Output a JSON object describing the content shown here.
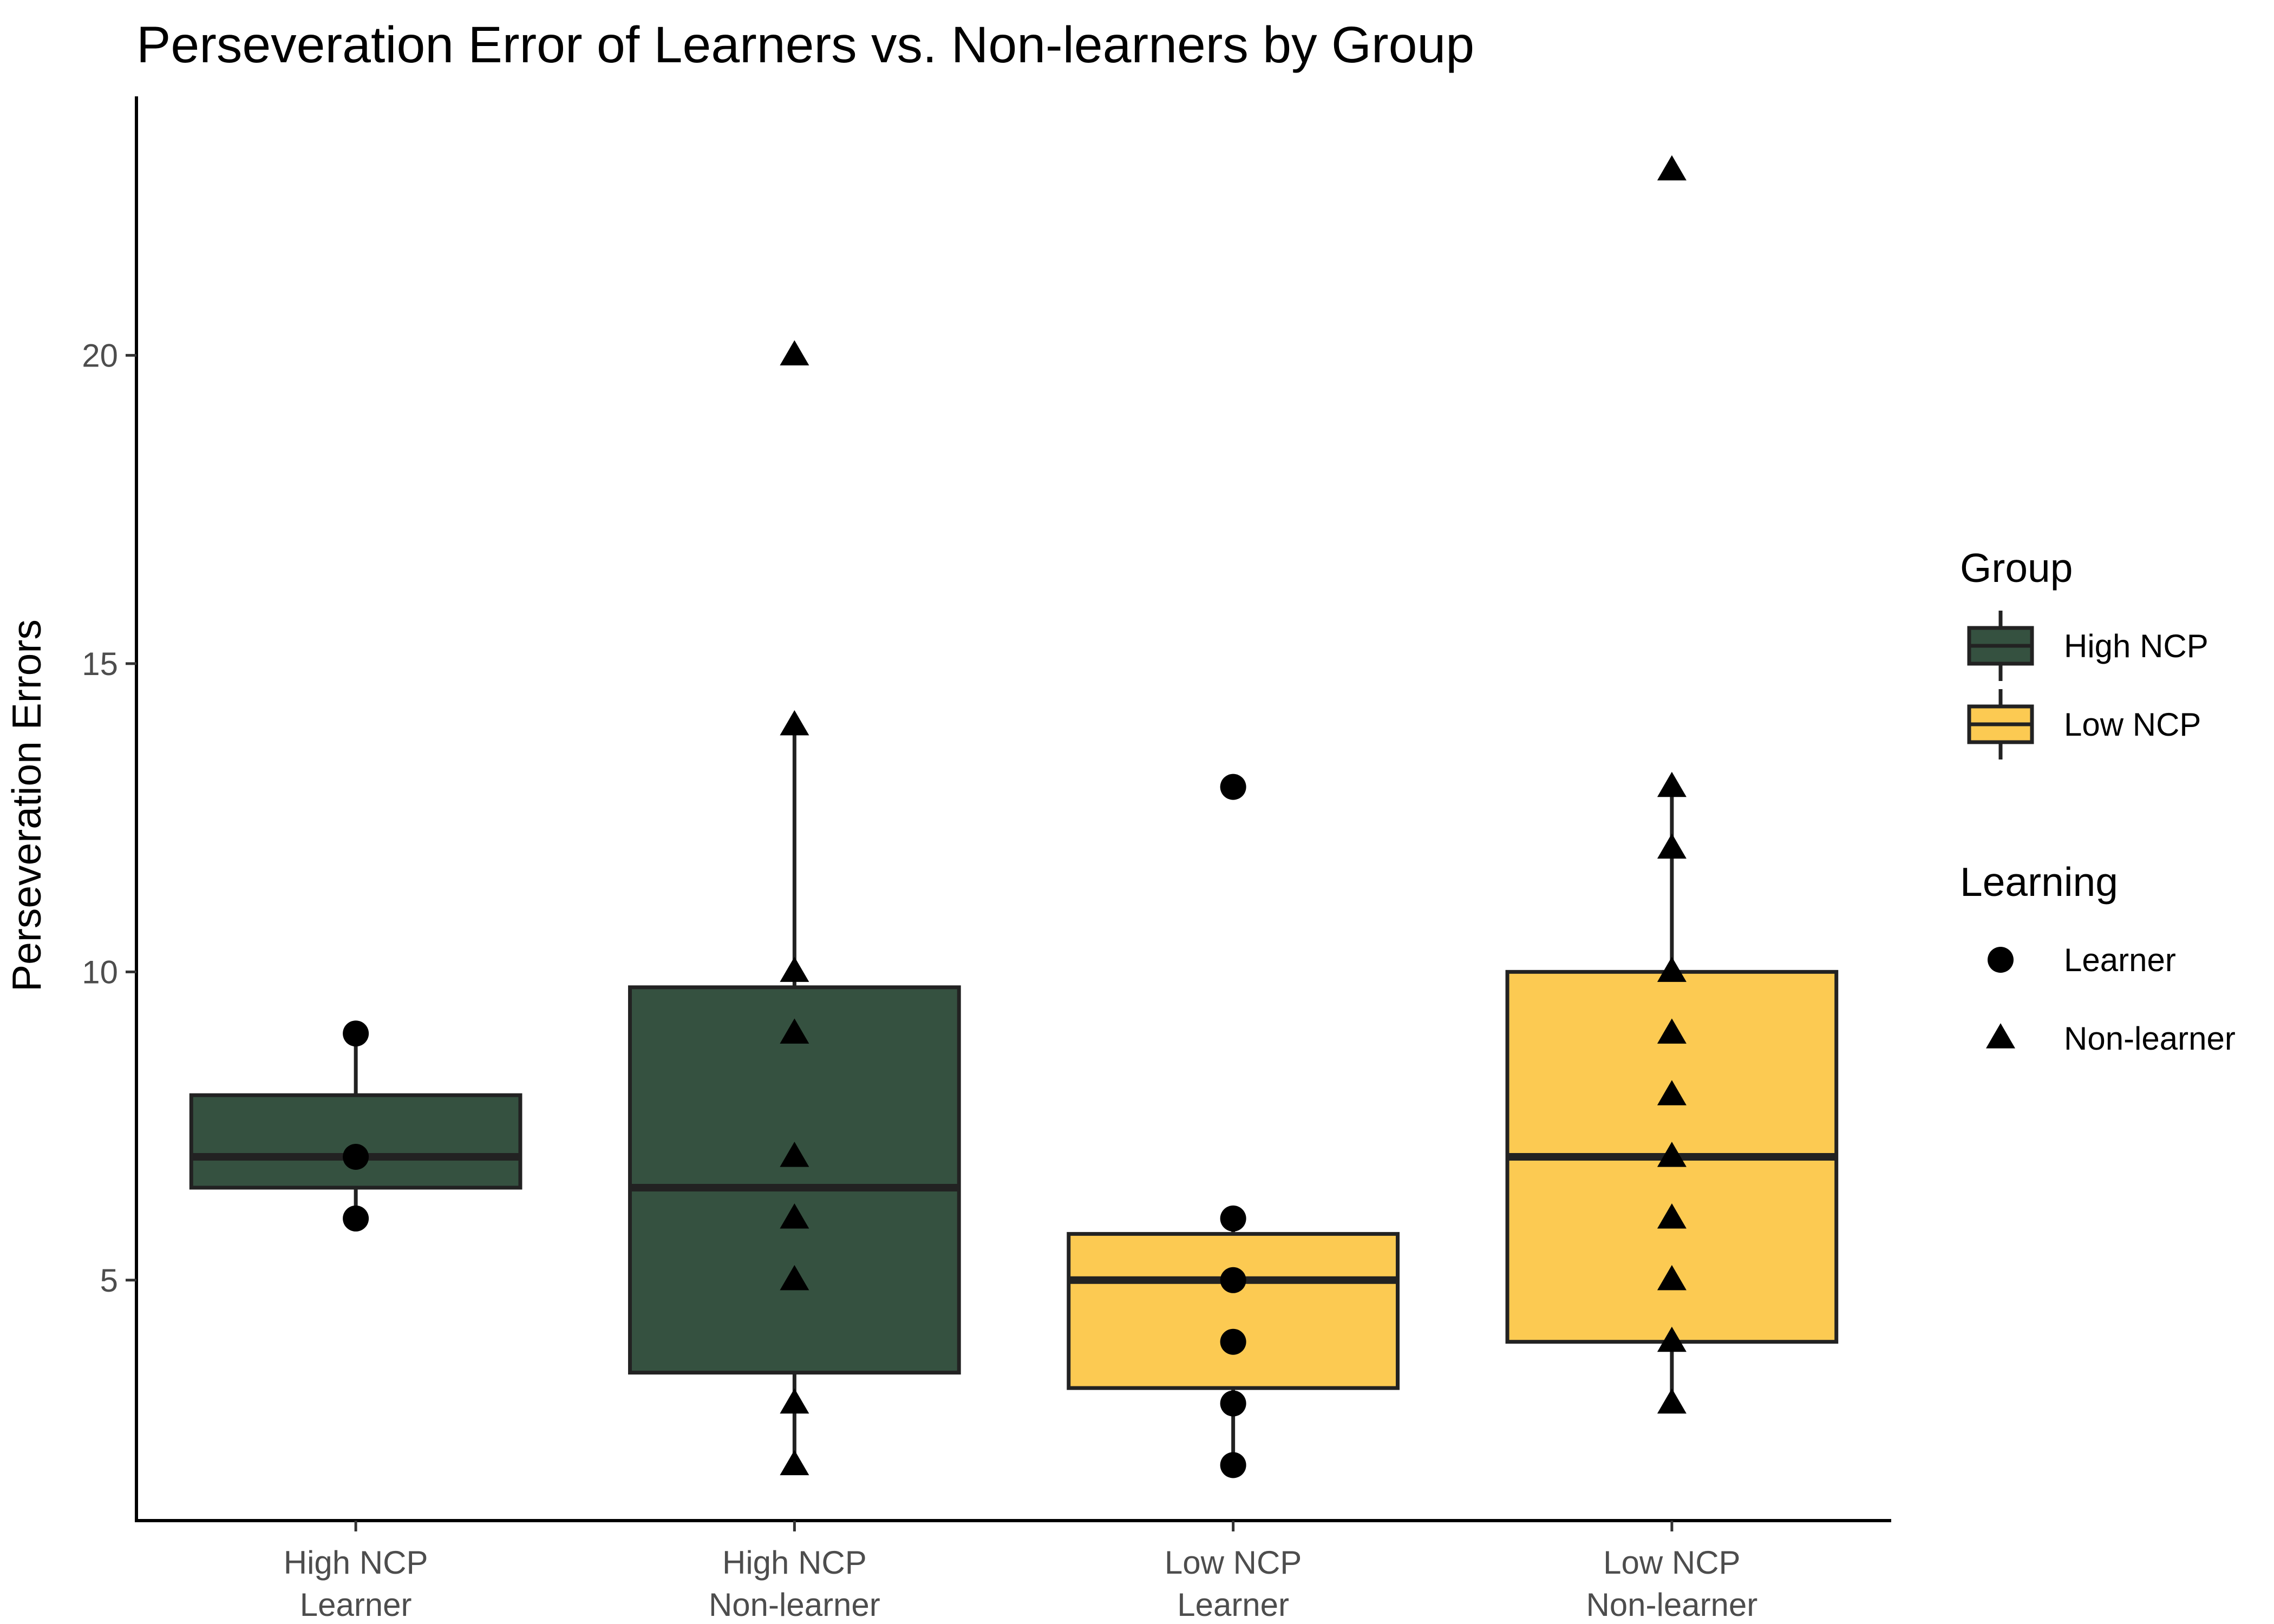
{
  "chart_data": {
    "type": "boxplot",
    "title": "Perseveration Error of Learners vs. Non-learners by Group",
    "xlabel": "",
    "ylabel": "Perseveration Errors",
    "ylim": [
      1.1,
      24.2
    ],
    "yticks": [
      5,
      10,
      15,
      20
    ],
    "grid": false,
    "legend_position": "right",
    "colors": {
      "High NCP": "#355140",
      "Low NCP": "#FCCA52",
      "outline": "#222222"
    },
    "categories": [
      {
        "label_line1": "High NCP",
        "label_line2": "Learner",
        "group": "High NCP",
        "learning": "Learner",
        "box": {
          "lower_whisker": 6,
          "q1": 6.5,
          "median": 7,
          "q3": 8,
          "upper_whisker": 9
        },
        "points": [
          9,
          7,
          6
        ]
      },
      {
        "label_line1": "High NCP",
        "label_line2": "Non-learner",
        "group": "High NCP",
        "learning": "Non-learner",
        "box": {
          "lower_whisker": 2,
          "q1": 3.5,
          "median": 6.5,
          "q3": 9.75,
          "upper_whisker": 14
        },
        "points": [
          20,
          14,
          10,
          9,
          7,
          6,
          5,
          3,
          2
        ]
      },
      {
        "label_line1": "Low NCP",
        "label_line2": "Learner",
        "group": "Low NCP",
        "learning": "Learner",
        "box": {
          "lower_whisker": 2,
          "q1": 3.25,
          "median": 5,
          "q3": 5.75,
          "upper_whisker": 6
        },
        "points": [
          13,
          6,
          5,
          4,
          3,
          2
        ]
      },
      {
        "label_line1": "Low NCP",
        "label_line2": "Non-learner",
        "group": "Low NCP",
        "learning": "Non-learner",
        "box": {
          "lower_whisker": 3,
          "q1": 4,
          "median": 7,
          "q3": 10,
          "upper_whisker": 13
        },
        "points": [
          23,
          13,
          12,
          10,
          9,
          8,
          7,
          6,
          5,
          4,
          3
        ]
      }
    ],
    "legend": {
      "group": {
        "title": "Group",
        "items": [
          {
            "label": "High NCP",
            "color": "#355140"
          },
          {
            "label": "Low NCP",
            "color": "#FCCA52"
          }
        ]
      },
      "learning": {
        "title": "Learning",
        "items": [
          {
            "label": "Learner",
            "shape": "circle"
          },
          {
            "label": "Non-learner",
            "shape": "triangle"
          }
        ]
      }
    }
  }
}
